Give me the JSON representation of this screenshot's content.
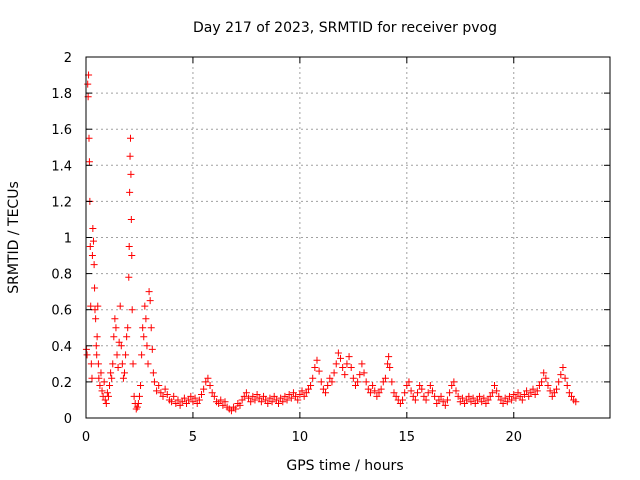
{
  "chart_data": {
    "type": "scatter",
    "title": "Day 217 of 2023, SRMTID for receiver pvog",
    "xlabel": "GPS time / hours",
    "ylabel": "SRMTID / TECUs",
    "xlim": [
      0,
      24.5
    ],
    "ylim": [
      0,
      2
    ],
    "xticks": [
      0,
      5,
      10,
      15,
      20
    ],
    "xtick_labels": [
      "0",
      "5",
      "10",
      "15",
      "20"
    ],
    "yticks": [
      0,
      0.2,
      0.4,
      0.6,
      0.8,
      1,
      1.2,
      1.4,
      1.6,
      1.8,
      2
    ],
    "ytick_labels": [
      "0",
      "0.2",
      "0.4",
      "0.6",
      "0.8",
      "1",
      "1.2",
      "1.4",
      "1.6",
      "1.8",
      "2"
    ],
    "grid": true,
    "marker": "+",
    "color": "#ff0000",
    "series": [
      {
        "name": "SRMTID",
        "points": [
          [
            0.02,
            0.38
          ],
          [
            0.05,
            0.35
          ],
          [
            0.08,
            1.85
          ],
          [
            0.1,
            1.78
          ],
          [
            0.12,
            1.9
          ],
          [
            0.14,
            1.55
          ],
          [
            0.16,
            1.42
          ],
          [
            0.18,
            1.2
          ],
          [
            0.2,
            0.95
          ],
          [
            0.22,
            0.62
          ],
          [
            0.25,
            0.3
          ],
          [
            0.28,
            0.22
          ],
          [
            0.3,
            0.9
          ],
          [
            0.32,
            1.05
          ],
          [
            0.35,
            0.98
          ],
          [
            0.38,
            0.85
          ],
          [
            0.4,
            0.72
          ],
          [
            0.42,
            0.6
          ],
          [
            0.45,
            0.55
          ],
          [
            0.48,
            0.4
          ],
          [
            0.5,
            0.35
          ],
          [
            0.52,
            0.45
          ],
          [
            0.55,
            0.62
          ],
          [
            0.58,
            0.3
          ],
          [
            0.6,
            0.22
          ],
          [
            0.65,
            0.18
          ],
          [
            0.7,
            0.25
          ],
          [
            0.75,
            0.15
          ],
          [
            0.8,
            0.12
          ],
          [
            0.85,
            0.2
          ],
          [
            0.9,
            0.1
          ],
          [
            0.95,
            0.08
          ],
          [
            1.0,
            0.14
          ],
          [
            1.05,
            0.12
          ],
          [
            1.1,
            0.18
          ],
          [
            1.15,
            0.25
          ],
          [
            1.2,
            0.22
          ],
          [
            1.25,
            0.3
          ],
          [
            1.3,
            0.45
          ],
          [
            1.35,
            0.55
          ],
          [
            1.4,
            0.5
          ],
          [
            1.45,
            0.35
          ],
          [
            1.5,
            0.28
          ],
          [
            1.55,
            0.42
          ],
          [
            1.6,
            0.62
          ],
          [
            1.65,
            0.4
          ],
          [
            1.7,
            0.3
          ],
          [
            1.75,
            0.22
          ],
          [
            1.8,
            0.25
          ],
          [
            1.85,
            0.35
          ],
          [
            1.9,
            0.45
          ],
          [
            1.95,
            0.5
          ],
          [
            2.0,
            0.78
          ],
          [
            2.02,
            0.95
          ],
          [
            2.04,
            1.25
          ],
          [
            2.06,
            1.45
          ],
          [
            2.08,
            1.55
          ],
          [
            2.1,
            1.35
          ],
          [
            2.12,
            1.1
          ],
          [
            2.14,
            0.9
          ],
          [
            2.16,
            0.6
          ],
          [
            2.2,
            0.3
          ],
          [
            2.25,
            0.12
          ],
          [
            2.3,
            0.08
          ],
          [
            2.35,
            0.05
          ],
          [
            2.4,
            0.06
          ],
          [
            2.45,
            0.08
          ],
          [
            2.5,
            0.12
          ],
          [
            2.55,
            0.18
          ],
          [
            2.6,
            0.35
          ],
          [
            2.65,
            0.5
          ],
          [
            2.7,
            0.45
          ],
          [
            2.75,
            0.62
          ],
          [
            2.8,
            0.55
          ],
          [
            2.85,
            0.4
          ],
          [
            2.9,
            0.3
          ],
          [
            2.95,
            0.7
          ],
          [
            3.0,
            0.65
          ],
          [
            3.05,
            0.5
          ],
          [
            3.1,
            0.38
          ],
          [
            3.15,
            0.25
          ],
          [
            3.2,
            0.2
          ],
          [
            3.3,
            0.15
          ],
          [
            3.4,
            0.18
          ],
          [
            3.5,
            0.14
          ],
          [
            3.6,
            0.12
          ],
          [
            3.7,
            0.16
          ],
          [
            3.8,
            0.13
          ],
          [
            3.9,
            0.1
          ],
          [
            4.0,
            0.09
          ],
          [
            4.1,
            0.12
          ],
          [
            4.2,
            0.08
          ],
          [
            4.3,
            0.1
          ],
          [
            4.4,
            0.07
          ],
          [
            4.5,
            0.09
          ],
          [
            4.6,
            0.11
          ],
          [
            4.7,
            0.08
          ],
          [
            4.8,
            0.1
          ],
          [
            4.9,
            0.12
          ],
          [
            5.0,
            0.09
          ],
          [
            5.1,
            0.11
          ],
          [
            5.2,
            0.08
          ],
          [
            5.3,
            0.1
          ],
          [
            5.4,
            0.13
          ],
          [
            5.5,
            0.16
          ],
          [
            5.6,
            0.2
          ],
          [
            5.7,
            0.22
          ],
          [
            5.8,
            0.18
          ],
          [
            5.9,
            0.14
          ],
          [
            6.0,
            0.12
          ],
          [
            6.1,
            0.09
          ],
          [
            6.2,
            0.08
          ],
          [
            6.3,
            0.1
          ],
          [
            6.4,
            0.07
          ],
          [
            6.5,
            0.09
          ],
          [
            6.6,
            0.06
          ],
          [
            6.7,
            0.05
          ],
          [
            6.8,
            0.04
          ],
          [
            6.9,
            0.06
          ],
          [
            7.0,
            0.05
          ],
          [
            7.1,
            0.08
          ],
          [
            7.2,
            0.07
          ],
          [
            7.3,
            0.1
          ],
          [
            7.4,
            0.12
          ],
          [
            7.5,
            0.14
          ],
          [
            7.6,
            0.11
          ],
          [
            7.7,
            0.09
          ],
          [
            7.8,
            0.12
          ],
          [
            7.9,
            0.1
          ],
          [
            8.0,
            0.13
          ],
          [
            8.1,
            0.11
          ],
          [
            8.2,
            0.09
          ],
          [
            8.3,
            0.12
          ],
          [
            8.4,
            0.1
          ],
          [
            8.5,
            0.08
          ],
          [
            8.6,
            0.11
          ],
          [
            8.7,
            0.09
          ],
          [
            8.8,
            0.12
          ],
          [
            8.9,
            0.1
          ],
          [
            9.0,
            0.08
          ],
          [
            9.1,
            0.11
          ],
          [
            9.2,
            0.09
          ],
          [
            9.3,
            0.12
          ],
          [
            9.4,
            0.1
          ],
          [
            9.5,
            0.13
          ],
          [
            9.6,
            0.11
          ],
          [
            9.7,
            0.14
          ],
          [
            9.8,
            0.12
          ],
          [
            9.9,
            0.1
          ],
          [
            10.0,
            0.13
          ],
          [
            10.1,
            0.15
          ],
          [
            10.2,
            0.12
          ],
          [
            10.3,
            0.14
          ],
          [
            10.4,
            0.16
          ],
          [
            10.5,
            0.18
          ],
          [
            10.6,
            0.22
          ],
          [
            10.7,
            0.28
          ],
          [
            10.8,
            0.32
          ],
          [
            10.9,
            0.26
          ],
          [
            11.0,
            0.2
          ],
          [
            11.1,
            0.16
          ],
          [
            11.2,
            0.14
          ],
          [
            11.3,
            0.18
          ],
          [
            11.4,
            0.22
          ],
          [
            11.5,
            0.2
          ],
          [
            11.6,
            0.25
          ],
          [
            11.7,
            0.3
          ],
          [
            11.8,
            0.36
          ],
          [
            11.9,
            0.33
          ],
          [
            12.0,
            0.28
          ],
          [
            12.1,
            0.24
          ],
          [
            12.2,
            0.3
          ],
          [
            12.3,
            0.34
          ],
          [
            12.4,
            0.28
          ],
          [
            12.5,
            0.22
          ],
          [
            12.6,
            0.18
          ],
          [
            12.7,
            0.2
          ],
          [
            12.8,
            0.24
          ],
          [
            12.9,
            0.3
          ],
          [
            13.0,
            0.25
          ],
          [
            13.1,
            0.2
          ],
          [
            13.2,
            0.16
          ],
          [
            13.3,
            0.14
          ],
          [
            13.4,
            0.18
          ],
          [
            13.5,
            0.15
          ],
          [
            13.6,
            0.12
          ],
          [
            13.7,
            0.14
          ],
          [
            13.8,
            0.16
          ],
          [
            13.9,
            0.2
          ],
          [
            14.0,
            0.22
          ],
          [
            14.1,
            0.3
          ],
          [
            14.15,
            0.34
          ],
          [
            14.2,
            0.28
          ],
          [
            14.3,
            0.2
          ],
          [
            14.4,
            0.14
          ],
          [
            14.5,
            0.12
          ],
          [
            14.6,
            0.1
          ],
          [
            14.7,
            0.08
          ],
          [
            14.8,
            0.1
          ],
          [
            14.9,
            0.14
          ],
          [
            15.0,
            0.18
          ],
          [
            15.1,
            0.2
          ],
          [
            15.2,
            0.15
          ],
          [
            15.3,
            0.12
          ],
          [
            15.4,
            0.1
          ],
          [
            15.5,
            0.14
          ],
          [
            15.6,
            0.18
          ],
          [
            15.7,
            0.16
          ],
          [
            15.8,
            0.12
          ],
          [
            15.9,
            0.1
          ],
          [
            16.0,
            0.14
          ],
          [
            16.1,
            0.18
          ],
          [
            16.2,
            0.15
          ],
          [
            16.3,
            0.12
          ],
          [
            16.4,
            0.08
          ],
          [
            16.5,
            0.1
          ],
          [
            16.6,
            0.12
          ],
          [
            16.7,
            0.09
          ],
          [
            16.8,
            0.07
          ],
          [
            16.9,
            0.1
          ],
          [
            17.0,
            0.14
          ],
          [
            17.1,
            0.18
          ],
          [
            17.2,
            0.2
          ],
          [
            17.3,
            0.15
          ],
          [
            17.4,
            0.12
          ],
          [
            17.5,
            0.09
          ],
          [
            17.6,
            0.11
          ],
          [
            17.7,
            0.08
          ],
          [
            17.8,
            0.1
          ],
          [
            17.9,
            0.12
          ],
          [
            18.0,
            0.09
          ],
          [
            18.1,
            0.11
          ],
          [
            18.2,
            0.08
          ],
          [
            18.3,
            0.1
          ],
          [
            18.4,
            0.12
          ],
          [
            18.5,
            0.09
          ],
          [
            18.6,
            0.11
          ],
          [
            18.7,
            0.08
          ],
          [
            18.8,
            0.1
          ],
          [
            18.9,
            0.12
          ],
          [
            19.0,
            0.14
          ],
          [
            19.1,
            0.18
          ],
          [
            19.2,
            0.15
          ],
          [
            19.3,
            0.12
          ],
          [
            19.4,
            0.1
          ],
          [
            19.5,
            0.08
          ],
          [
            19.6,
            0.11
          ],
          [
            19.7,
            0.09
          ],
          [
            19.8,
            0.12
          ],
          [
            19.9,
            0.1
          ],
          [
            20.0,
            0.13
          ],
          [
            20.1,
            0.11
          ],
          [
            20.2,
            0.14
          ],
          [
            20.3,
            0.12
          ],
          [
            20.4,
            0.1
          ],
          [
            20.5,
            0.13
          ],
          [
            20.6,
            0.15
          ],
          [
            20.7,
            0.12
          ],
          [
            20.8,
            0.14
          ],
          [
            20.9,
            0.16
          ],
          [
            21.0,
            0.13
          ],
          [
            21.1,
            0.15
          ],
          [
            21.2,
            0.18
          ],
          [
            21.3,
            0.2
          ],
          [
            21.4,
            0.25
          ],
          [
            21.5,
            0.22
          ],
          [
            21.6,
            0.18
          ],
          [
            21.7,
            0.15
          ],
          [
            21.8,
            0.12
          ],
          [
            21.9,
            0.14
          ],
          [
            22.0,
            0.16
          ],
          [
            22.1,
            0.2
          ],
          [
            22.2,
            0.24
          ],
          [
            22.3,
            0.28
          ],
          [
            22.4,
            0.22
          ],
          [
            22.5,
            0.18
          ],
          [
            22.6,
            0.14
          ],
          [
            22.7,
            0.12
          ],
          [
            22.8,
            0.1
          ],
          [
            22.9,
            0.09
          ]
        ]
      }
    ]
  }
}
